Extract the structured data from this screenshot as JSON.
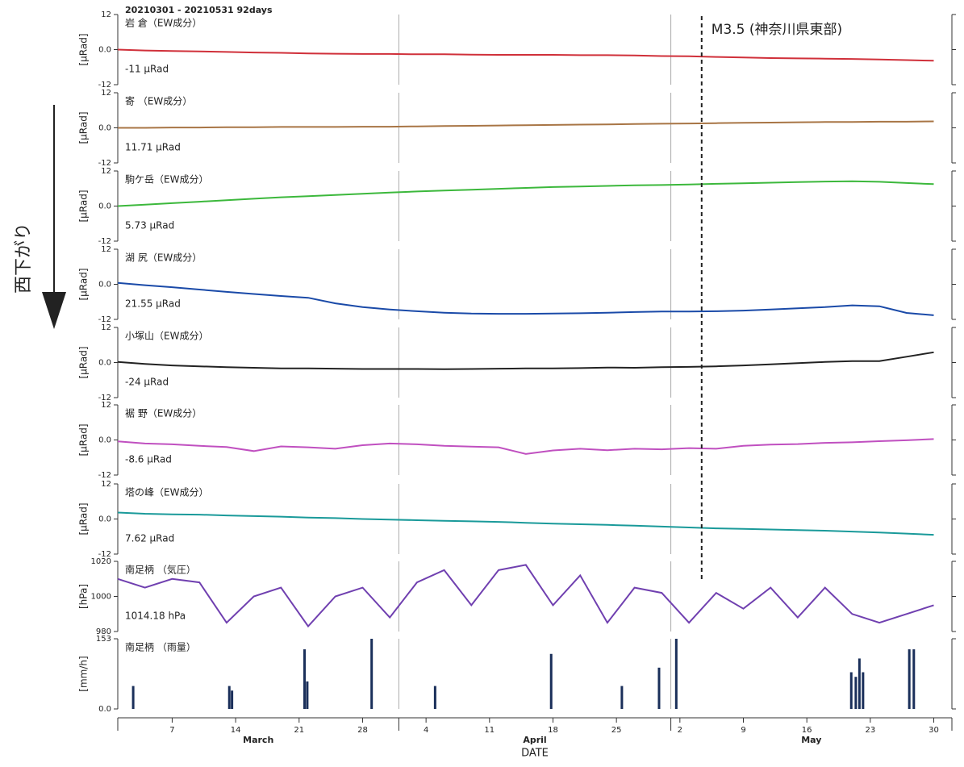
{
  "title": "20210301 - 20210531 92days",
  "side_label": "西下がり",
  "event": {
    "x": 64.4,
    "label": "M3.5 (神奈川県東部)"
  },
  "x_axis": {
    "xlim": [
      0,
      92
    ],
    "label": "DATE",
    "xticks": [
      {
        "value": 6,
        "label": "7"
      },
      {
        "value": 13,
        "label": "14"
      },
      {
        "value": 20,
        "label": "21"
      },
      {
        "value": 27,
        "label": "28"
      },
      {
        "value": 34,
        "label": "4"
      },
      {
        "value": 41,
        "label": "11"
      },
      {
        "value": 48,
        "label": "18"
      },
      {
        "value": 55,
        "label": "25"
      },
      {
        "value": 62,
        "label": "2"
      },
      {
        "value": 69,
        "label": "9"
      },
      {
        "value": 76,
        "label": "16"
      },
      {
        "value": 83,
        "label": "23"
      },
      {
        "value": 90,
        "label": "30"
      }
    ],
    "month_edges": [
      0,
      31,
      61,
      92
    ],
    "months": [
      "March",
      "April",
      "May"
    ]
  },
  "chart_data": [
    {
      "type": "line",
      "name": "岩 倉（EW成分）",
      "value_label": "-11 μRad",
      "ylabel": "[μRad]",
      "color": "#d0303a",
      "ylim": [
        -12,
        12
      ],
      "yticks": [
        -12,
        {
          "value": 0,
          "label": "0.0"
        },
        12
      ],
      "x": [
        0,
        3,
        6,
        9,
        12,
        15,
        18,
        21,
        24,
        27,
        30,
        33,
        36,
        39,
        42,
        45,
        48,
        51,
        54,
        57,
        60,
        63,
        66,
        69,
        72,
        75,
        78,
        81,
        84,
        87,
        90
      ],
      "values": [
        0,
        -0.3,
        -0.5,
        -0.6,
        -0.8,
        -1,
        -1.1,
        -1.3,
        -1.4,
        -1.5,
        -1.5,
        -1.6,
        -1.6,
        -1.7,
        -1.8,
        -1.8,
        -1.8,
        -1.9,
        -1.9,
        -2,
        -2.2,
        -2.3,
        -2.5,
        -2.7,
        -2.9,
        -3,
        -3.1,
        -3.2,
        -3.4,
        -3.6,
        -3.8
      ]
    },
    {
      "type": "line",
      "name": "寄 （EW成分）",
      "value_label": "11.71 μRad",
      "ylabel": "[μRad]",
      "color": "#a87545",
      "ylim": [
        -12,
        12
      ],
      "yticks": [
        -12,
        {
          "value": 0,
          "label": "0.0"
        },
        12
      ],
      "x": [
        0,
        3,
        6,
        9,
        12,
        15,
        18,
        21,
        24,
        27,
        30,
        33,
        36,
        39,
        42,
        45,
        48,
        51,
        54,
        57,
        60,
        63,
        66,
        69,
        72,
        75,
        78,
        81,
        84,
        87,
        90
      ],
      "values": [
        0,
        0,
        0.1,
        0.1,
        0.2,
        0.2,
        0.3,
        0.3,
        0.3,
        0.4,
        0.4,
        0.5,
        0.6,
        0.7,
        0.8,
        0.9,
        1,
        1.1,
        1.2,
        1.3,
        1.4,
        1.5,
        1.6,
        1.7,
        1.8,
        1.9,
        2,
        2,
        2.1,
        2.1,
        2.2
      ]
    },
    {
      "type": "line",
      "name": "駒ケ岳（EW成分）",
      "value_label": "5.73 μRad",
      "ylabel": "[μRad]",
      "color": "#3cb83c",
      "ylim": [
        -12,
        12
      ],
      "yticks": [
        -12,
        {
          "value": 0,
          "label": "0.0"
        },
        12
      ],
      "x": [
        0,
        3,
        6,
        9,
        12,
        15,
        18,
        21,
        24,
        27,
        30,
        33,
        36,
        39,
        42,
        45,
        48,
        51,
        54,
        57,
        60,
        63,
        66,
        69,
        72,
        75,
        78,
        81,
        84,
        87,
        90
      ],
      "values": [
        0,
        0.5,
        1,
        1.5,
        2,
        2.5,
        3,
        3.4,
        3.8,
        4.2,
        4.6,
        5,
        5.3,
        5.6,
        5.9,
        6.2,
        6.5,
        6.7,
        6.9,
        7.1,
        7.2,
        7.4,
        7.6,
        7.8,
        8,
        8.2,
        8.4,
        8.5,
        8.3,
        7.9,
        7.5
      ]
    },
    {
      "type": "line",
      "name": "湖 尻（EW成分）",
      "value_label": "21.55 μRad",
      "ylabel": "[μRad]",
      "color": "#1a4aa8",
      "ylim": [
        -12,
        12
      ],
      "yticks": [
        -12,
        {
          "value": 0,
          "label": "0.0"
        },
        12
      ],
      "x": [
        0,
        3,
        6,
        9,
        12,
        15,
        18,
        21,
        24,
        27,
        30,
        33,
        36,
        39,
        42,
        45,
        48,
        51,
        54,
        57,
        60,
        63,
        66,
        69,
        72,
        75,
        78,
        81,
        84,
        87,
        90
      ],
      "values": [
        0.5,
        -0.3,
        -1,
        -1.8,
        -2.6,
        -3.3,
        -4,
        -4.6,
        -6.5,
        -7.8,
        -8.6,
        -9.2,
        -9.7,
        -10,
        -10.1,
        -10.1,
        -10,
        -9.9,
        -9.7,
        -9.5,
        -9.3,
        -9.3,
        -9.2,
        -9,
        -8.6,
        -8.2,
        -7.8,
        -7.2,
        -7.5,
        -9.8,
        -10.6
      ]
    },
    {
      "type": "line",
      "name": "小塚山（EW成分）",
      "value_label": "-24 μRad",
      "ylabel": "[μRad]",
      "color": "#222222",
      "ylim": [
        -12,
        12
      ],
      "yticks": [
        -12,
        {
          "value": 0,
          "label": "0.0"
        },
        12
      ],
      "x": [
        0,
        3,
        6,
        9,
        12,
        15,
        18,
        21,
        24,
        27,
        30,
        33,
        36,
        39,
        42,
        45,
        48,
        51,
        54,
        57,
        60,
        63,
        66,
        69,
        72,
        75,
        78,
        81,
        84,
        87,
        90
      ],
      "values": [
        0.2,
        -0.5,
        -1,
        -1.3,
        -1.6,
        -1.8,
        -2,
        -2,
        -2.1,
        -2.2,
        -2.2,
        -2.2,
        -2.3,
        -2.2,
        -2.1,
        -2,
        -2,
        -1.9,
        -1.7,
        -1.8,
        -1.6,
        -1.5,
        -1.3,
        -1,
        -0.6,
        -0.2,
        0.2,
        0.5,
        0.5,
        2,
        3.5
      ]
    },
    {
      "type": "line",
      "name": "裾 野（EW成分）",
      "value_label": "-8.6 μRad",
      "ylabel": "[μRad]",
      "color": "#c050c0",
      "ylim": [
        -12,
        12
      ],
      "yticks": [
        -12,
        {
          "value": 0,
          "label": "0.0"
        },
        12
      ],
      "x": [
        0,
        3,
        6,
        9,
        12,
        15,
        18,
        21,
        24,
        27,
        30,
        33,
        36,
        39,
        42,
        45,
        48,
        51,
        54,
        57,
        60,
        63,
        66,
        69,
        72,
        75,
        78,
        81,
        84,
        87,
        90
      ],
      "values": [
        -0.5,
        -1.2,
        -1.5,
        -2,
        -2.4,
        -3.8,
        -2.2,
        -2.5,
        -3,
        -1.8,
        -1.2,
        -1.5,
        -2,
        -2.3,
        -2.5,
        -4.8,
        -3.6,
        -3,
        -3.5,
        -3,
        -3.2,
        -2.8,
        -3,
        -2,
        -1.6,
        -1.4,
        -1,
        -0.8,
        -0.4,
        -0.1,
        0.3
      ]
    },
    {
      "type": "line",
      "name": "塔の峰（EW成分）",
      "value_label": "7.62 μRad",
      "ylabel": "[μRad]",
      "color": "#1a9a9a",
      "ylim": [
        -12,
        12
      ],
      "yticks": [
        -12,
        {
          "value": 0,
          "label": "0.0"
        },
        12
      ],
      "x": [
        0,
        3,
        6,
        9,
        12,
        15,
        18,
        21,
        24,
        27,
        30,
        33,
        36,
        39,
        42,
        45,
        48,
        51,
        54,
        57,
        60,
        63,
        66,
        69,
        72,
        75,
        78,
        81,
        84,
        87,
        90
      ],
      "values": [
        2.2,
        1.8,
        1.6,
        1.5,
        1.2,
        1,
        0.8,
        0.5,
        0.3,
        0,
        -0.2,
        -0.4,
        -0.6,
        -0.8,
        -1,
        -1.3,
        -1.6,
        -1.8,
        -2,
        -2.3,
        -2.6,
        -2.9,
        -3.2,
        -3.4,
        -3.6,
        -3.8,
        -4,
        -4.3,
        -4.6,
        -5,
        -5.4
      ]
    },
    {
      "type": "line",
      "name": "南足柄 （気圧）",
      "value_label": "1014.18 hPa",
      "ylabel": "[hPa]",
      "color": "#7040b0",
      "ylim": [
        980,
        1020
      ],
      "yticks": [
        980,
        1000,
        1020
      ],
      "x": [
        0,
        3,
        6,
        9,
        12,
        15,
        18,
        21,
        24,
        27,
        30,
        33,
        36,
        39,
        42,
        45,
        48,
        51,
        54,
        57,
        60,
        63,
        66,
        69,
        72,
        75,
        78,
        81,
        84,
        87,
        90
      ],
      "values": [
        1010,
        1005,
        1010,
        1008,
        985,
        1000,
        1005,
        983,
        1000,
        1005,
        988,
        1008,
        1015,
        995,
        1015,
        1018,
        995,
        1012,
        985,
        1005,
        1002,
        985,
        1002,
        993,
        1005,
        988,
        1005,
        990,
        985,
        990,
        995
      ]
    },
    {
      "type": "bar",
      "name": "南足柄 （雨量）",
      "ylabel": "[mm/h]",
      "color": "#1a2f5a",
      "ylim": [
        0,
        153
      ],
      "yticks": [
        {
          "value": 0,
          "label": "0.0"
        },
        153
      ],
      "x": [
        1.7,
        12.3,
        12.6,
        20.6,
        20.9,
        28,
        35,
        47.8,
        55.6,
        59.7,
        61.6,
        80.9,
        81.4,
        81.8,
        82.2,
        87.3,
        87.8
      ],
      "values": [
        50,
        50,
        40,
        130,
        60,
        153,
        50,
        120,
        50,
        90,
        153,
        80,
        70,
        110,
        80,
        130,
        130
      ]
    }
  ]
}
